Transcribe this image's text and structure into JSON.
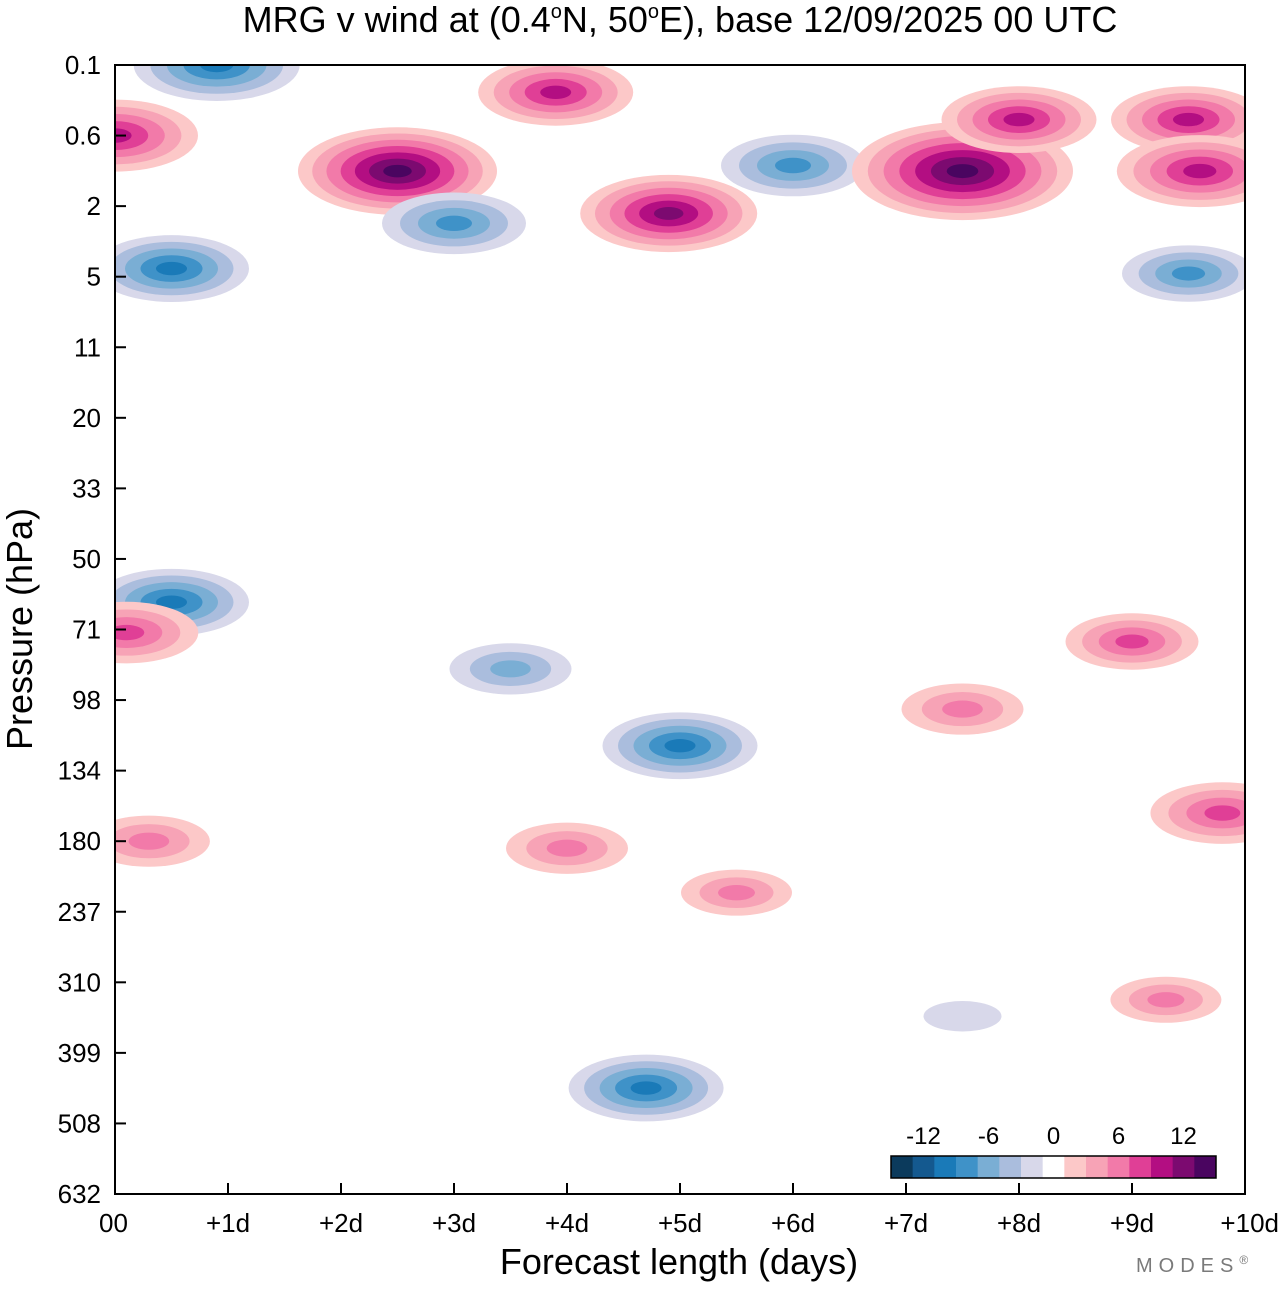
{
  "chart_data": {
    "type": "heatmap",
    "title": "MRG v wind at (0.4°N, 50°E),  base 12/09/2025  00 UTC",
    "title_parts": {
      "prefix": "MRG v wind at (0.4",
      "deg": "o",
      "mid": "N, 50",
      "suffix": "E),  base 12/09/2025  00 UTC"
    },
    "xlabel": "Forecast length (days)",
    "ylabel": "Pressure (hPa)",
    "x_ticks": [
      "00",
      "+1d",
      "+2d",
      "+3d",
      "+4d",
      "+5d",
      "+6d",
      "+7d",
      "+8d",
      "+9d",
      "+10d"
    ],
    "xlim": [
      0,
      10
    ],
    "y_ticks": [
      "0.1",
      "0.6",
      "2",
      "5",
      "11",
      "20",
      "33",
      "50",
      "71",
      "98",
      "134",
      "180",
      "237",
      "310",
      "399",
      "508",
      "632"
    ],
    "ylim": [
      0.1,
      632
    ],
    "colorbar": {
      "tick_labels": [
        "-12",
        "-6",
        "0",
        "6",
        "12"
      ],
      "colors": [
        "#0b3a5c",
        "#14598f",
        "#1a7ab8",
        "#3f92c8",
        "#7aaed4",
        "#aabddd",
        "#d8d8ea",
        "#ffffff",
        "#fcc8c8",
        "#f7a3b6",
        "#f27aa9",
        "#e03f96",
        "#b30e82",
        "#7c0a70",
        "#4a0560"
      ]
    },
    "levels": [
      -14,
      -12,
      -10,
      -8,
      -6,
      -4,
      -2,
      0,
      2,
      4,
      6,
      8,
      10,
      12,
      14
    ],
    "features": [
      {
        "day": 0.0,
        "p": 0.6,
        "v": 10
      },
      {
        "day": 0.9,
        "p": 0.1,
        "v": -10
      },
      {
        "day": 0.5,
        "p": 4.5,
        "v": -9
      },
      {
        "day": 2.5,
        "p": 1.1,
        "v": 13
      },
      {
        "day": 3.0,
        "p": 2.5,
        "v": -8
      },
      {
        "day": 3.9,
        "p": 0.2,
        "v": 9
      },
      {
        "day": 4.9,
        "p": 2.2,
        "v": 11
      },
      {
        "day": 6.0,
        "p": 1.0,
        "v": -8
      },
      {
        "day": 7.5,
        "p": 1.1,
        "v": 15
      },
      {
        "day": 8.0,
        "p": 0.4,
        "v": 9
      },
      {
        "day": 9.5,
        "p": 0.4,
        "v": 9
      },
      {
        "day": 9.6,
        "p": 1.1,
        "v": 10
      },
      {
        "day": 9.5,
        "p": 4.8,
        "v": -7
      },
      {
        "day": 0.5,
        "p": 62,
        "v": -9
      },
      {
        "day": 0.1,
        "p": 72,
        "v": 8
      },
      {
        "day": 3.5,
        "p": 85,
        "v": -6
      },
      {
        "day": 5.0,
        "p": 120,
        "v": -9
      },
      {
        "day": 7.5,
        "p": 102,
        "v": 6
      },
      {
        "day": 9.0,
        "p": 75,
        "v": 7
      },
      {
        "day": 9.8,
        "p": 160,
        "v": 8
      },
      {
        "day": 0.3,
        "p": 180,
        "v": 6
      },
      {
        "day": 4.0,
        "p": 185,
        "v": 6
      },
      {
        "day": 5.5,
        "p": 220,
        "v": 5
      },
      {
        "day": 4.7,
        "p": 450,
        "v": -9
      },
      {
        "day": 7.5,
        "p": 350,
        "v": -2
      },
      {
        "day": 9.3,
        "p": 330,
        "v": 5
      }
    ]
  },
  "branding": {
    "mark": "MODES",
    "reg": "®"
  }
}
